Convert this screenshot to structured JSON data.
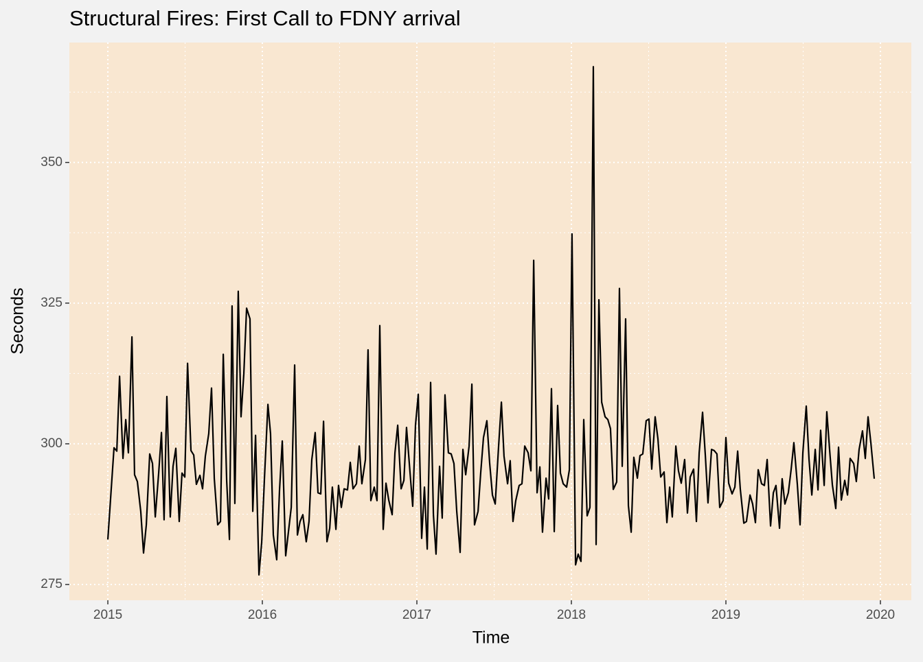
{
  "chart_data": {
    "type": "line",
    "title": "Structural Fires: First Call to FDNY arrival",
    "x_label": "Time",
    "y_label": "Seconds",
    "xlim": [
      2014.751,
      2020.2
    ],
    "ylim": [
      272.2,
      371.3
    ],
    "xticks": [
      2015,
      2016,
      2017,
      2018,
      2019,
      2020
    ],
    "yticks": [
      275,
      300,
      325,
      350
    ],
    "grid": true,
    "series": [
      {
        "name": "Seconds",
        "color": "#000000",
        "x": [
          2015.0,
          2015.04,
          2015.058,
          2015.076,
          2015.098,
          2015.116,
          2015.133,
          2015.156,
          2015.173,
          2015.191,
          2015.213,
          2015.231,
          2015.249,
          2015.271,
          2015.289,
          2015.307,
          2015.329,
          2015.347,
          2015.364,
          2015.382,
          2015.404,
          2015.422,
          2015.44,
          2015.462,
          2015.48,
          2015.498,
          2015.516,
          2015.538,
          2015.556,
          2015.573,
          2015.596,
          2015.613,
          2015.631,
          2015.653,
          2015.671,
          2015.689,
          2015.711,
          2015.729,
          2015.747,
          2015.769,
          2015.787,
          2015.804,
          2015.822,
          2015.844,
          2015.862,
          2015.88,
          2015.898,
          2015.92,
          2015.938,
          2015.956,
          2015.978,
          2015.996,
          2016.013,
          2016.036,
          2016.053,
          2016.071,
          2016.093,
          2016.111,
          2016.129,
          2016.151,
          2016.169,
          2016.187,
          2016.209,
          2016.227,
          2016.244,
          2016.262,
          2016.284,
          2016.302,
          2016.32,
          2016.342,
          2016.36,
          2016.378,
          2016.396,
          2016.418,
          2016.436,
          2016.453,
          2016.476,
          2016.493,
          2016.511,
          2016.529,
          2016.551,
          2016.569,
          2016.587,
          2016.609,
          2016.627,
          2016.644,
          2016.667,
          2016.684,
          2016.702,
          2016.724,
          2016.742,
          2016.76,
          2016.782,
          2016.8,
          2016.818,
          2016.84,
          2016.858,
          2016.876,
          2016.898,
          2016.916,
          2016.933,
          2016.956,
          2016.973,
          2016.991,
          2017.009,
          2017.031,
          2017.049,
          2017.067,
          2017.089,
          2017.107,
          2017.124,
          2017.147,
          2017.164,
          2017.182,
          2017.204,
          2017.222,
          2017.24,
          2017.258,
          2017.28,
          2017.298,
          2017.316,
          2017.338,
          2017.356,
          2017.373,
          2017.396,
          2017.413,
          2017.431,
          2017.453,
          2017.471,
          2017.489,
          2017.507,
          2017.529,
          2017.547,
          2017.564,
          2017.587,
          2017.604,
          2017.622,
          2017.64,
          2017.662,
          2017.68,
          2017.698,
          2017.72,
          2017.738,
          2017.756,
          2017.778,
          2017.796,
          2017.813,
          2017.836,
          2017.853,
          2017.871,
          2017.889,
          2017.911,
          2017.929,
          2017.947,
          2017.969,
          2017.987,
          2018.004,
          2018.027,
          2018.044,
          2018.062,
          2018.08,
          2018.102,
          2018.12,
          2018.142,
          2018.16,
          2018.178,
          2018.196,
          2018.218,
          2018.236,
          2018.253,
          2018.271,
          2018.293,
          2018.311,
          2018.329,
          2018.351,
          2018.369,
          2018.387,
          2018.404,
          2018.427,
          2018.444,
          2018.462,
          2018.484,
          2018.502,
          2018.52,
          2018.542,
          2018.56,
          2018.578,
          2018.6,
          2018.618,
          2018.636,
          2018.653,
          2018.676,
          2018.693,
          2018.711,
          2018.733,
          2018.751,
          2018.769,
          2018.791,
          2018.809,
          2018.827,
          2018.849,
          2018.867,
          2018.884,
          2018.907,
          2018.924,
          2018.942,
          2018.96,
          2018.982,
          2019.0,
          2019.018,
          2019.04,
          2019.058,
          2019.076,
          2019.093,
          2019.116,
          2019.133,
          2019.156,
          2019.173,
          2019.191,
          2019.209,
          2019.231,
          2019.249,
          2019.267,
          2019.289,
          2019.307,
          2019.324,
          2019.347,
          2019.364,
          2019.382,
          2019.404,
          2019.422,
          2019.44,
          2019.462,
          2019.48,
          2019.498,
          2019.52,
          2019.538,
          2019.556,
          2019.578,
          2019.596,
          2019.613,
          2019.636,
          2019.653,
          2019.671,
          2019.689,
          2019.711,
          2019.729,
          2019.747,
          2019.769,
          2019.787,
          2019.804,
          2019.827,
          2019.844,
          2019.862,
          2019.884,
          2019.902,
          2019.92,
          2019.938,
          2019.96
        ],
        "values": [
          283,
          299.3,
          298.7,
          312,
          297.4,
          304.3,
          298.4,
          319,
          294.5,
          293.3,
          288,
          280.6,
          285.6,
          298.2,
          296.5,
          287,
          294.8,
          302,
          286.5,
          308.4,
          287,
          296,
          299.2,
          286.2,
          294.8,
          294.1,
          314.3,
          298.8,
          298,
          292.8,
          294.4,
          292,
          297.8,
          301.8,
          309.9,
          293.8,
          285.6,
          286.2,
          315.9,
          293.5,
          283,
          324.5,
          289.4,
          327.1,
          304.8,
          312.4,
          324.1,
          322.2,
          288,
          301.5,
          276.7,
          282.6,
          293.5,
          307,
          301.8,
          283.8,
          279.4,
          291.7,
          300.5,
          280.1,
          284.4,
          288.7,
          314,
          283.8,
          286.2,
          287.4,
          282.6,
          286.2,
          297.2,
          302,
          291.3,
          291.1,
          304,
          282.6,
          285,
          292.3,
          284.8,
          292.6,
          288.7,
          292,
          291.8,
          296.7,
          292,
          292.9,
          299.6,
          292.9,
          297.2,
          316.7,
          289.9,
          292.3,
          289.9,
          321,
          284.8,
          293,
          290,
          287.4,
          298.4,
          303.3,
          292,
          293.5,
          302.9,
          294.8,
          288.9,
          303.3,
          308.8,
          283.2,
          292.3,
          281.3,
          310.9,
          287.4,
          280.4,
          296,
          286.8,
          308.7,
          298.4,
          298.2,
          296.5,
          288,
          280.7,
          299,
          294.5,
          299.6,
          310.6,
          285.6,
          288,
          294.8,
          301.1,
          304.1,
          296.6,
          290.9,
          289.3,
          299.6,
          307.4,
          297.8,
          292.9,
          297,
          286.2,
          289.9,
          292.6,
          292.9,
          299.6,
          298.4,
          295.2,
          332.6,
          291.3,
          295.9,
          284.3,
          293.9,
          290.2,
          309.8,
          284.4,
          306.8,
          294.8,
          292.9,
          292.3,
          295.4,
          337.3,
          278.5,
          280.4,
          279.1,
          304.3,
          287.2,
          288.7,
          367,
          282.1,
          325.6,
          307.4,
          304.8,
          304.3,
          302.7,
          291.9,
          293.2,
          327.6,
          296,
          322.2,
          289,
          284.3,
          297.6,
          293.9,
          297.9,
          298.2,
          304.1,
          304.4,
          295.5,
          304.8,
          300.9,
          294.1,
          295,
          286,
          292.3,
          287,
          299.6,
          295.2,
          293,
          297.2,
          287.7,
          294.1,
          295.5,
          286.2,
          298.4,
          305.6,
          297.9,
          289.5,
          299,
          298.8,
          298.2,
          288.7,
          289.9,
          301.1,
          293,
          291.1,
          292.3,
          298.7,
          292,
          285.9,
          286.2,
          290.9,
          289.3,
          286,
          295.4,
          292.9,
          292.6,
          297.2,
          285.4,
          291.3,
          292.6,
          285,
          293.8,
          289.3,
          291.3,
          295.4,
          300.2,
          292.9,
          285.6,
          298.4,
          306.7,
          297.2,
          290.9,
          299,
          291.8,
          302.4,
          292.6,
          305.7,
          299,
          292.7,
          288.5,
          299.4,
          290,
          293.5,
          290.9,
          297.4,
          296.5,
          293.3,
          299,
          302.3,
          297.4,
          304.8,
          300.2,
          293.8
        ]
      }
    ]
  }
}
